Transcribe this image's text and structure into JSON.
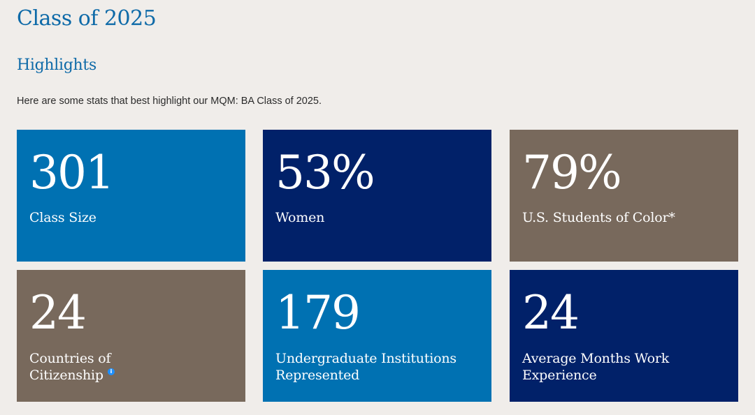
{
  "header": {
    "title": "Class of 2025"
  },
  "highlights": {
    "heading": "Highlights",
    "intro": "Here are some stats that best highlight our MQM: BA Class of 2025."
  },
  "colors": {
    "page_background": "#f0edea",
    "heading_blue": "#0e6aa8",
    "card_medium_blue": "#0071b2",
    "card_navy": "#012169",
    "card_taupe": "#78695c",
    "info_icon_blue": "#1e90ff"
  },
  "stats": [
    {
      "value": "301",
      "label": "Class Size",
      "color": "#0071b2"
    },
    {
      "value": "53%",
      "label": "Women",
      "color": "#012169"
    },
    {
      "value": "79%",
      "label": "U.S. Students of Color*",
      "color": "#78695c"
    },
    {
      "value": "24",
      "label_line1": "Countries of",
      "label_line2": "Citizenship",
      "color": "#78695c",
      "icon": "info-icon",
      "icon_glyph": "i"
    },
    {
      "value": "179",
      "label_line1": "Undergraduate Institutions",
      "label_line2": "Represented",
      "color": "#0071b2"
    },
    {
      "value": "24",
      "label_line1": "Average Months Work",
      "label_line2": "Experience",
      "color": "#012169"
    }
  ]
}
